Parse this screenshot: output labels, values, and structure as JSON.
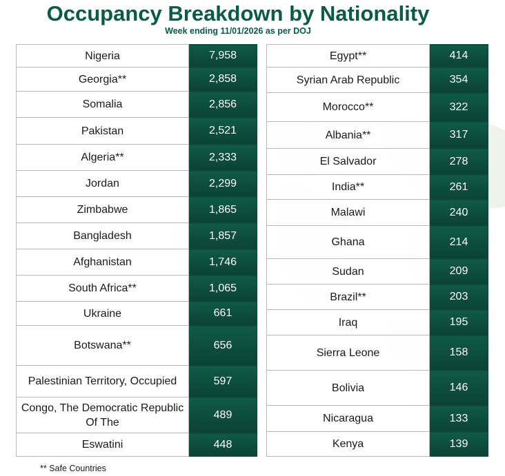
{
  "title": "Occupancy Breakdown by Nationality",
  "subtitle": "Week ending 11/01/2026 as per DOJ",
  "left_rows": [
    {
      "name": "Nigeria",
      "value": "7,958"
    },
    {
      "name": "Georgia**",
      "value": "2,858"
    },
    {
      "name": "Somalia",
      "value": "2,856"
    },
    {
      "name": "Pakistan",
      "value": "2,521"
    },
    {
      "name": "Algeria**",
      "value": "2,333"
    },
    {
      "name": "Jordan",
      "value": "2,299"
    },
    {
      "name": "Zimbabwe",
      "value": "1,865"
    },
    {
      "name": "Bangladesh",
      "value": "1,857"
    },
    {
      "name": "Afghanistan",
      "value": "1,746"
    },
    {
      "name": "South Africa**",
      "value": "1,065"
    },
    {
      "name": "Ukraine",
      "value": "661"
    },
    {
      "name": "Botswana**",
      "value": "656"
    },
    {
      "name": "Palestinian Territory, Occupied",
      "value": "597"
    },
    {
      "name": "Congo, The Democratic Republic Of The",
      "value": "489"
    },
    {
      "name": "Eswatini",
      "value": "448"
    }
  ],
  "right_rows": [
    {
      "name": "Egypt**",
      "value": "414"
    },
    {
      "name": "Syrian Arab Republic",
      "value": "354"
    },
    {
      "name": "Morocco**",
      "value": "322"
    },
    {
      "name": "Albania**",
      "value": "317"
    },
    {
      "name": "El Salvador",
      "value": "278"
    },
    {
      "name": "India**",
      "value": "261"
    },
    {
      "name": "Malawi",
      "value": "240"
    },
    {
      "name": "Ghana",
      "value": "214"
    },
    {
      "name": "Sudan",
      "value": "209"
    },
    {
      "name": "Brazil**",
      "value": "203"
    },
    {
      "name": "Iraq",
      "value": "195"
    },
    {
      "name": "Sierra Leone",
      "value": "158"
    },
    {
      "name": "Bolivia",
      "value": "146"
    },
    {
      "name": "Nicaragua",
      "value": "133"
    },
    {
      "name": "Kenya",
      "value": "139"
    }
  ],
  "footnote": "** Safe Countries",
  "colors": {
    "accent": "#0a5a48",
    "cell_dark": "#0b4234"
  }
}
